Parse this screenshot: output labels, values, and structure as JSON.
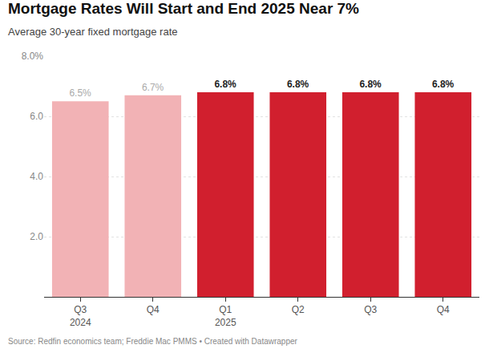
{
  "chart_data": {
    "type": "bar",
    "title": "Mortgage Rates Will Start and End 2025 Near 7%",
    "subtitle": "Average 30-year fixed mortgage rate",
    "source": "Source: Redfin economics team; Freddie Mac PMMS • Created with Datawrapper",
    "categories": [
      "Q3\n2024",
      "Q4",
      "Q1\n2025",
      "Q2",
      "Q3",
      "Q4"
    ],
    "values": [
      6.5,
      6.7,
      6.8,
      6.8,
      6.8,
      6.8
    ],
    "value_labels": [
      "6.5%",
      "6.7%",
      "6.8%",
      "6.8%",
      "6.8%",
      "6.8%"
    ],
    "colors": [
      "#f2b2b5",
      "#f2b2b5",
      "#d11f2e",
      "#d11f2e",
      "#d11f2e",
      "#d11f2e"
    ],
    "data_labels": true,
    "ylim": [
      0,
      8
    ],
    "yticks": [
      {
        "value": 2,
        "label": "2.0"
      },
      {
        "value": 4,
        "label": "4.0"
      },
      {
        "value": 6,
        "label": "6.0"
      },
      {
        "value": 8,
        "label": "8.0%"
      }
    ],
    "grid": true
  }
}
